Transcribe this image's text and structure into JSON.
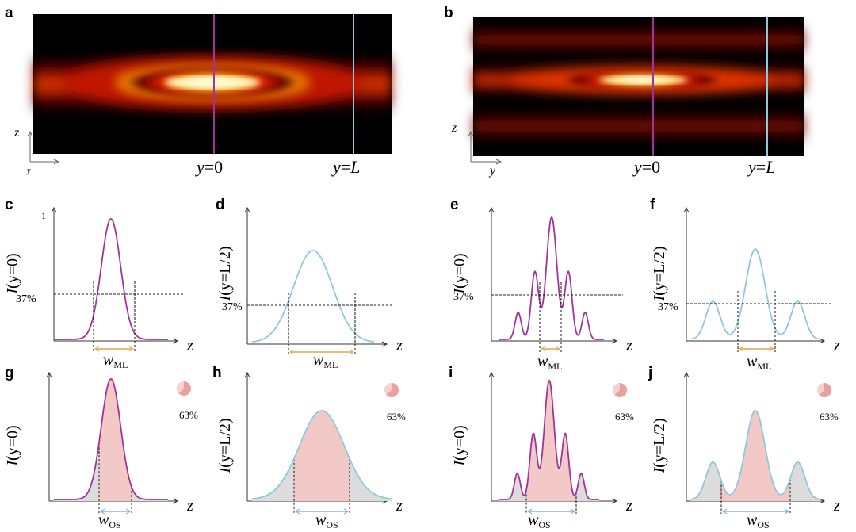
{
  "colors": {
    "purple": "#a0349c",
    "cyan": "#8ec8dc",
    "orange": "#e0a548",
    "fill_pink": "#f3c9c7",
    "fill_gray": "#dcdcdc",
    "pie_light": "#f4d2d0",
    "pie_dark": "#eaa09e"
  },
  "panel_labels": [
    "a",
    "b",
    "c",
    "d",
    "e",
    "f",
    "g",
    "h",
    "i",
    "j"
  ],
  "heatmaps": [
    {
      "label": "a",
      "axis_v": "z",
      "axis_h": "y",
      "line0": "y=0",
      "lineL": "y=L",
      "var0": "y",
      "val0": "=0",
      "varL": "y",
      "valL": "=L"
    },
    {
      "label": "b",
      "axis_v": "z",
      "axis_h": "y",
      "line0": "y=0",
      "lineL": "y=L",
      "var0": "y",
      "val0": "=0",
      "varL": "y",
      "valL": "=L"
    }
  ],
  "profiles": [
    {
      "label": "c",
      "ylabel": "I(y=0)",
      "ytop": "1",
      "thresh": "37%",
      "width": "wML",
      "wsym": "w",
      "wsub": "ML",
      "xlab": "z"
    },
    {
      "label": "d",
      "ylabel": "I(y=L/2)",
      "thresh": "37%",
      "width": "wML",
      "wsym": "w",
      "wsub": "ML",
      "xlab": "z"
    },
    {
      "label": "e",
      "ylabel": "I(y=0)",
      "thresh": "37%",
      "width": "wML",
      "wsym": "w",
      "wsub": "ML",
      "xlab": "z"
    },
    {
      "label": "f",
      "ylabel": "I(y=L/2)",
      "thresh": "37%",
      "width": "wML",
      "wsym": "w",
      "wsub": "ML",
      "xlab": "z"
    },
    {
      "label": "g",
      "ylabel": "I(y=0)",
      "pie": "63%",
      "width": "wOS",
      "wsym": "w",
      "wsub": "OS",
      "xlab": "z"
    },
    {
      "label": "h",
      "ylabel": "I(y=L/2)",
      "pie": "63%",
      "width": "wOS",
      "wsym": "w",
      "wsub": "OS",
      "xlab": "z"
    },
    {
      "label": "i",
      "ylabel": "I(y=0)",
      "pie": "63%",
      "width": "wOS",
      "wsym": "w",
      "wsub": "OS",
      "xlab": "z"
    },
    {
      "label": "j",
      "ylabel": "I(y=L/2)",
      "pie": "63%",
      "width": "wOS",
      "wsym": "w",
      "wsub": "OS",
      "xlab": "z"
    }
  ]
}
